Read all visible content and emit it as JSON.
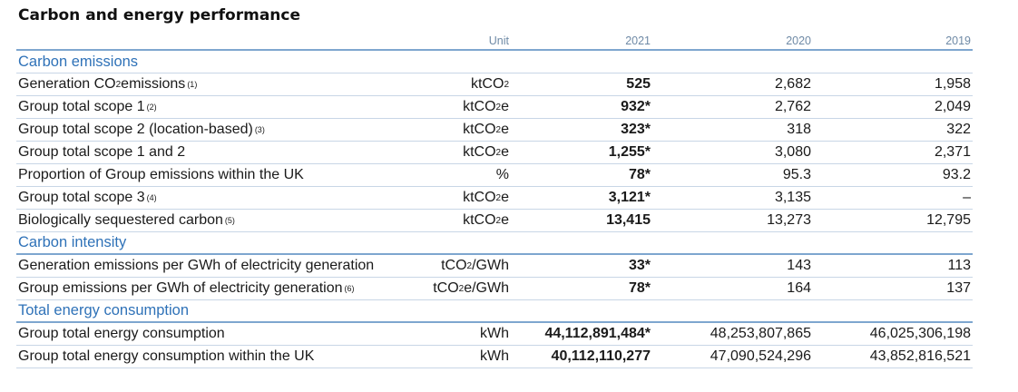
{
  "title": "Carbon and energy performance",
  "columns": {
    "unit": "Unit",
    "y2021": "2021",
    "y2020": "2020",
    "y2019": "2019"
  },
  "sections": {
    "carbon_emissions": "Carbon emissions",
    "carbon_intensity": "Carbon intensity",
    "total_energy": "Total energy consumption"
  },
  "rows": {
    "gen_co2": {
      "label_pre": "Generation CO",
      "label_sub": "2",
      "label_post": " emissions",
      "note": "(1)",
      "unit_pre": "ktCO",
      "unit_sub": "2",
      "unit_post": "",
      "v2021": "525",
      "v2020": "2,682",
      "v2019": "1,958"
    },
    "scope1": {
      "label_pre": "Group total scope 1",
      "note": "(2)",
      "unit_pre": "ktCO",
      "unit_sub": "2",
      "unit_post": "e",
      "v2021": "932*",
      "v2020": "2,762",
      "v2019": "2,049"
    },
    "scope2": {
      "label_pre": "Group total scope 2 (location-based)",
      "note": "(3)",
      "unit_pre": "ktCO",
      "unit_sub": "2",
      "unit_post": "e",
      "v2021": "323*",
      "v2020": "318",
      "v2019": "322"
    },
    "scope12": {
      "label_pre": "Group total scope 1 and 2",
      "unit_pre": "ktCO",
      "unit_sub": "2",
      "unit_post": "e",
      "v2021": "1,255*",
      "v2020": "3,080",
      "v2019": "2,371"
    },
    "uk_prop": {
      "label_pre": "Proportion of Group emissions within the UK",
      "unit_pre": "%",
      "v2021": "78*",
      "v2020": "95.3",
      "v2019": "93.2"
    },
    "scope3": {
      "label_pre": "Group total scope 3",
      "note": "(4)",
      "unit_pre": "ktCO",
      "unit_sub": "2",
      "unit_post": "e",
      "v2021": "3,121*",
      "v2020": "3,135",
      "v2019": "–"
    },
    "bio_carbon": {
      "label_pre": "Biologically sequestered carbon",
      "note": "(5)",
      "unit_pre": "ktCO",
      "unit_sub": "2",
      "unit_post": "e",
      "v2021": "13,415",
      "v2020": "13,273",
      "v2019": "12,795"
    },
    "gen_per_gwh": {
      "label_pre": "Generation emissions per GWh of electricity generation",
      "unit_pre": "tCO",
      "unit_sub": "2",
      "unit_post": "/GWh",
      "v2021": "33*",
      "v2020": "143",
      "v2019": "113"
    },
    "group_per_gwh": {
      "label_pre": "Group emissions per GWh of electricity generation",
      "note": "(6)",
      "unit_pre": "tCO",
      "unit_sub": "2",
      "unit_post": "e/GWh",
      "v2021": "78*",
      "v2020": "164",
      "v2019": "137"
    },
    "energy_total": {
      "label_pre": "Group total energy consumption",
      "unit_pre": "kWh",
      "v2021": "44,112,891,484*",
      "v2020": "48,253,807,865",
      "v2019": "46,025,306,198"
    },
    "energy_uk": {
      "label_pre": "Group total energy consumption within the UK",
      "unit_pre": "kWh",
      "v2021": "40,112,110,277",
      "v2020": "47,090,524,296",
      "v2019": "43,852,816,521"
    }
  }
}
